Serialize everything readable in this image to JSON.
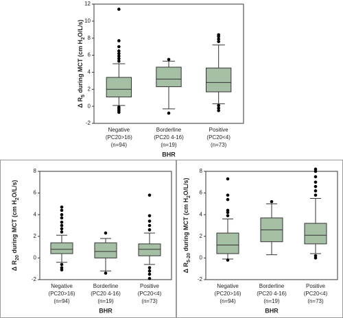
{
  "chart_data": [
    {
      "type": "box",
      "color": "#a5bfa5",
      "ylabel": [
        "Δ R",
        "5",
        " during MCT (cm H",
        "2",
        "O/L/s)"
      ],
      "xlabel": "BHR",
      "categories": [
        [
          "Negative",
          "(PC20>16)",
          "(n=94)"
        ],
        [
          "Borderline",
          "(PC20 4-16)",
          "(n=19)"
        ],
        [
          "Positive",
          "(PC20<4)",
          "(n=73)"
        ]
      ],
      "ylim": [
        -2,
        12
      ],
      "yticks": [
        -2,
        0,
        2,
        4,
        6,
        8,
        10,
        12
      ],
      "boxes": [
        {
          "low": 0.1,
          "q1": 1.1,
          "median": 2.0,
          "q3": 3.4,
          "high": 5.0,
          "outliers": [
            5.3,
            5.6,
            5.9,
            6.2,
            6.5,
            7.0,
            7.7,
            11.4,
            -0.1,
            -0.3,
            -0.5,
            -0.7
          ]
        },
        {
          "low": -0.3,
          "q1": 2.3,
          "median": 3.2,
          "q3": 4.6,
          "high": 5.3,
          "outliers": [
            5.5,
            -0.8
          ]
        },
        {
          "low": 0.3,
          "q1": 1.7,
          "median": 2.8,
          "q3": 4.5,
          "high": 7.2,
          "outliers": [
            7.6,
            7.9,
            8.2,
            8.4,
            0.1,
            -0.2,
            -0.5
          ]
        }
      ]
    },
    {
      "type": "box",
      "color": "#a5bfa5",
      "ylabel": [
        "Δ R",
        "20",
        " during MCT (cm H",
        "2",
        "O/L/s)"
      ],
      "xlabel": "BHR",
      "categories": [
        [
          "Negative",
          "(PC20>16)",
          "(n=94)"
        ],
        [
          "Borderline",
          "(PC20 4-16)",
          "(n=19)"
        ],
        [
          "Positive",
          "(PC20<4)",
          "(n=73)"
        ]
      ],
      "ylim": [
        -2,
        8
      ],
      "yticks": [
        -2,
        0,
        2,
        4,
        6,
        8
      ],
      "boxes": [
        {
          "low": -0.4,
          "q1": 0.4,
          "median": 0.8,
          "q3": 1.4,
          "high": 2.1,
          "outliers": [
            2.4,
            2.7,
            3.0,
            3.3,
            3.7,
            4.0,
            4.4,
            4.7,
            -0.6,
            -0.9,
            -1.1
          ]
        },
        {
          "low": -1.2,
          "q1": 0.0,
          "median": 0.6,
          "q3": 1.4,
          "high": 1.8,
          "outliers": [
            2.3,
            -1.4
          ]
        },
        {
          "low": -0.6,
          "q1": 0.2,
          "median": 0.8,
          "q3": 1.3,
          "high": 2.3,
          "outliers": [
            2.6,
            3.0,
            3.4,
            3.9,
            5.8,
            -0.9,
            -1.2,
            -1.5,
            -1.9
          ]
        }
      ]
    },
    {
      "type": "box",
      "color": "#a5bfa5",
      "ylabel": [
        "Δ R",
        "5-20",
        " during MCT (cm H",
        "2",
        "O/L/s)"
      ],
      "xlabel": "BHR",
      "categories": [
        [
          "Negative",
          "(PC20>16)",
          "(n=94)"
        ],
        [
          "Borderline",
          "(PC20 4-16)",
          "(n=19)"
        ],
        [
          "Positive",
          "(PC20<4)",
          "(n=73)"
        ]
      ],
      "ylim": [
        -2,
        8
      ],
      "yticks": [
        -2,
        0,
        2,
        4,
        6,
        8
      ],
      "boxes": [
        {
          "low": -0.1,
          "q1": 0.4,
          "median": 1.2,
          "q3": 2.3,
          "high": 3.6,
          "outliers": [
            3.9,
            4.2,
            4.4,
            5.4,
            5.8,
            7.3,
            -0.2
          ]
        },
        {
          "low": 0.3,
          "q1": 1.5,
          "median": 2.6,
          "q3": 3.7,
          "high": 5.0,
          "outliers": [
            5.2
          ]
        },
        {
          "low": 0.4,
          "q1": 1.3,
          "median": 2.1,
          "q3": 3.2,
          "high": 5.5,
          "outliers": [
            5.8,
            6.2,
            6.6,
            7.0,
            7.5,
            8.0,
            8.2,
            0.2,
            0.0
          ]
        }
      ]
    }
  ]
}
